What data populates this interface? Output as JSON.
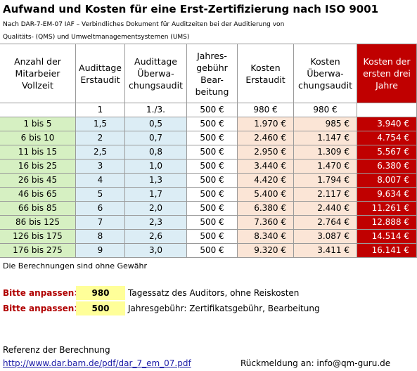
{
  "header": {
    "title": "Aufwand und Kosten für eine Erst-Zertifizierung nach ISO 9001",
    "subtitle": [
      "Nach DAR-7-EM-07 IAF – Verbindliches Dokument für Auditzeiten bei der Auditierung von",
      "Qualitäts- (QMS) und Umweltmanagementsystemen (UMS)"
    ]
  },
  "table": {
    "columns": [
      [
        "Anzahl der",
        "Mitarbeier",
        "Vollzeit"
      ],
      [
        "Audittage",
        "Erstaudit"
      ],
      [
        "Audittage",
        "Überwa-",
        "chungsaudit"
      ],
      [
        "Jahres-",
        "gebühr",
        "Bear-",
        "beitung"
      ],
      [
        "Kosten",
        "Erstaudit"
      ],
      [
        "Kosten",
        "Überwa-",
        "chungsaudit"
      ],
      [
        "Kosten der",
        "ersten drei",
        "Jahre"
      ]
    ],
    "units": [
      "1",
      "1./3.",
      "500 €",
      "980 €",
      "980 €"
    ],
    "rows": [
      [
        "1 bis 5",
        "1,5",
        "0,5",
        "500 €",
        "1.970 €",
        "985 €",
        "3.940 €"
      ],
      [
        "6 bis 10",
        "2",
        "0,7",
        "500 €",
        "2.460 €",
        "1.147 €",
        "4.754 €"
      ],
      [
        "11 bis 15",
        "2,5",
        "0,8",
        "500 €",
        "2.950 €",
        "1.309 €",
        "5.567 €"
      ],
      [
        "16 bis 25",
        "3",
        "1,0",
        "500 €",
        "3.440 €",
        "1.470 €",
        "6.380 €"
      ],
      [
        "26 bis 45",
        "4",
        "1,3",
        "500 €",
        "4.420 €",
        "1.794 €",
        "8.007 €"
      ],
      [
        "46 bis 65",
        "5",
        "1,7",
        "500 €",
        "5.400 €",
        "2.117 €",
        "9.634 €"
      ],
      [
        "66 bis 85",
        "6",
        "2,0",
        "500 €",
        "6.380 €",
        "2.440 €",
        "11.261 €"
      ],
      [
        "86 bis 125",
        "7",
        "2,3",
        "500 €",
        "7.360 €",
        "2.764 €",
        "12.888 €"
      ],
      [
        "126 bis 175",
        "8",
        "2,6",
        "500 €",
        "8.340 €",
        "3.087 €",
        "14.514 €"
      ],
      [
        "176 bis 275",
        "9",
        "3,0",
        "500 €",
        "9.320 €",
        "3.411 €",
        "16.141 €"
      ]
    ]
  },
  "footer": {
    "disclaimer": "Die Berechnungen sind ohne Gewähr",
    "settings": [
      {
        "label": "Bitte anpassen>:",
        "value": "980",
        "note": "Tagessatz des Auditors, ohne Reiskosten"
      },
      {
        "label": "Bitte anpassen>:",
        "value": "500",
        "note": "Jahresgebühr: Zertifikatsgebühr, Bearbeitung"
      }
    ],
    "reference": "Referenz der Berechnung",
    "link": "http://www.dar.bam.de/pdf/dar_7_em_07.pdf",
    "contact": "Rückmeldung an: info@qm-guru.de"
  }
}
